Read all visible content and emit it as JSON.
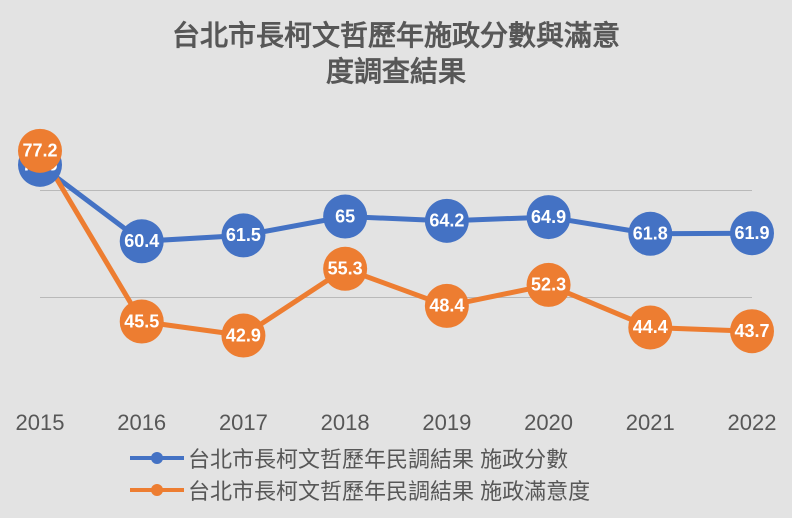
{
  "title_line1": "台北市長柯文哲歷年施政分數與滿意",
  "title_line2": "度調查結果",
  "type": "line",
  "background_color": "#e3e3e3",
  "grid_color": "#b9b9b9",
  "text_color": "#575757",
  "title_fontsize": 28,
  "label_fontsize": 22,
  "data_label_fontsize": 18,
  "data_label_color": "#ffffff",
  "ylim": [
    30,
    82
  ],
  "grid_ylevels": [
    50,
    70
  ],
  "years": [
    "2015",
    "2016",
    "2017",
    "2018",
    "2019",
    "2020",
    "2021",
    "2022"
  ],
  "series": [
    {
      "name": "score",
      "label": "台北市長柯文哲歷年民調結果 施政分數",
      "color": "#4472c4",
      "line_width": 5,
      "marker_radius": 22,
      "values": [
        74.6,
        60.4,
        61.5,
        65,
        64.2,
        64.9,
        61.8,
        61.9
      ],
      "display_values": [
        "74.6",
        "60.4",
        "61.5",
        "65",
        "64.2",
        "64.9",
        "61.8",
        "61.9"
      ]
    },
    {
      "name": "satisfaction",
      "label": "台北市長柯文哲歷年民調結果 施政滿意度",
      "color": "#ed7d31",
      "line_width": 5,
      "marker_radius": 22,
      "values": [
        77.2,
        45.5,
        42.9,
        55.3,
        48.4,
        52.3,
        44.4,
        43.7
      ],
      "display_values": [
        "77.2",
        "45.5",
        "42.9",
        "55.3",
        "48.4",
        "52.3",
        "44.4",
        "43.7"
      ]
    }
  ],
  "legend": {
    "items": [
      {
        "color": "#4472c4",
        "label": "台北市長柯文哲歷年民調結果 施政分數"
      },
      {
        "color": "#ed7d31",
        "label": "台北市長柯文哲歷年民調結果 施政滿意度"
      }
    ]
  }
}
